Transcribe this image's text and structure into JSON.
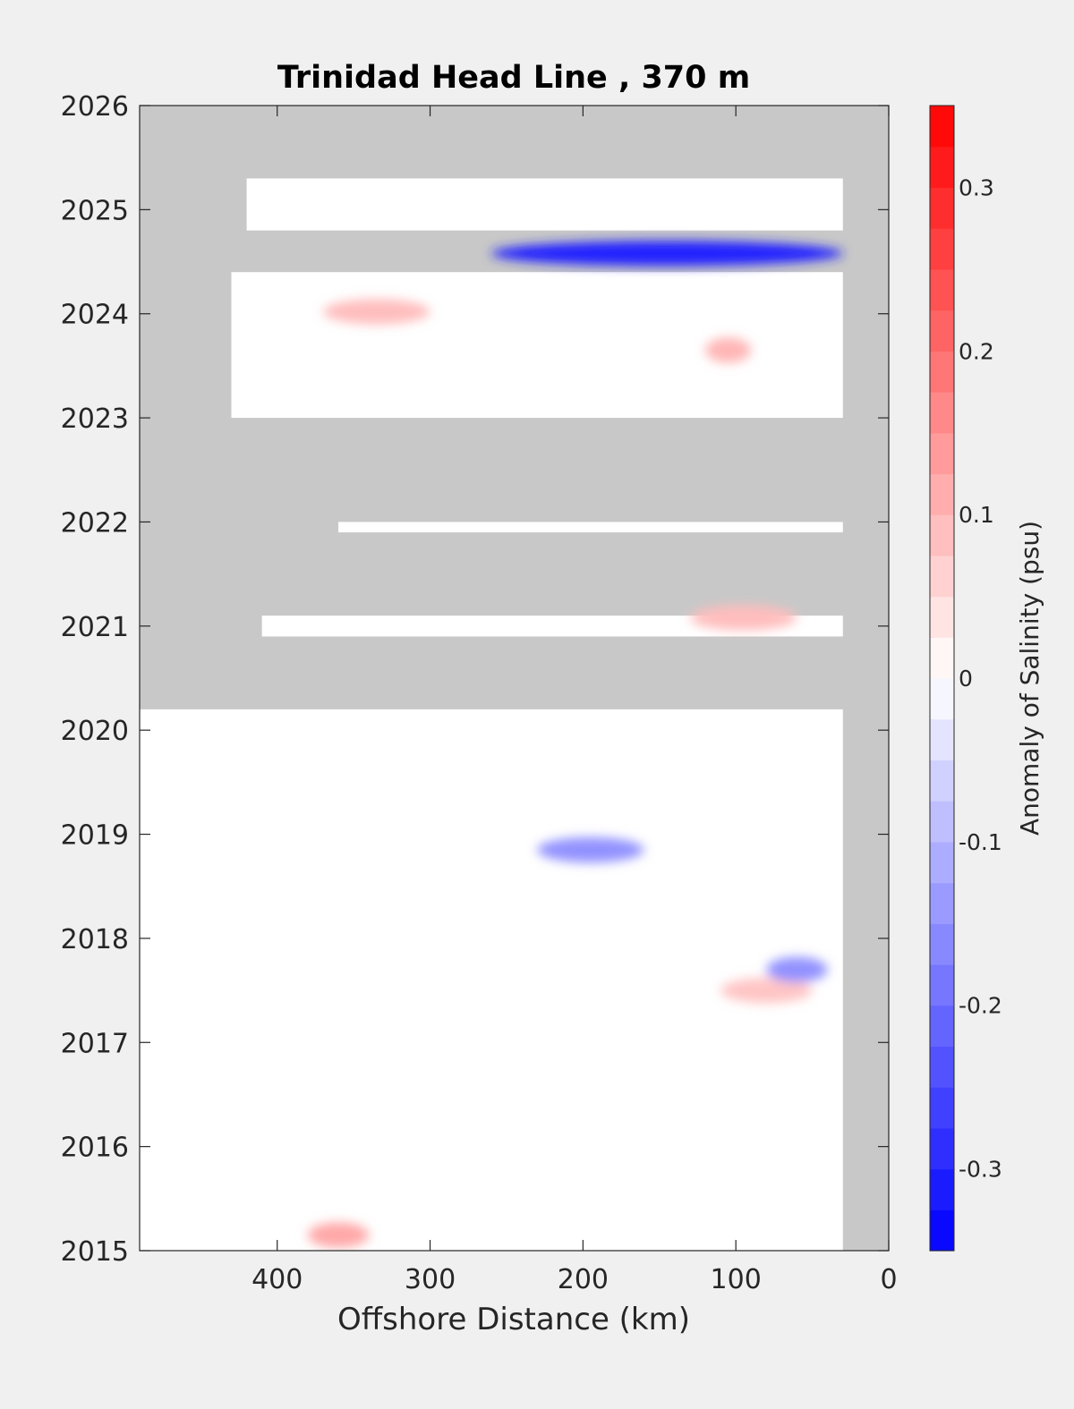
{
  "chart_data": {
    "type": "heatmap",
    "title": "Trinidad Head Line , 370 m",
    "xlabel": "Offshore Distance (km)",
    "ylabel": "",
    "xlim": [
      490,
      0
    ],
    "x_reversed": true,
    "ylim": [
      2015,
      2026
    ],
    "x_ticks": [
      400,
      300,
      200,
      100,
      0
    ],
    "y_ticks": [
      2015,
      2016,
      2017,
      2018,
      2019,
      2020,
      2021,
      2022,
      2023,
      2024,
      2025,
      2026
    ],
    "colorbar": {
      "label": "Anomaly of Salinity (psu)",
      "range": [
        -0.35,
        0.35
      ],
      "levels": 28,
      "ticks": [
        0.3,
        0.2,
        0.1,
        0,
        -0.1,
        -0.2,
        -0.3
      ],
      "tick_labels": [
        "0.3",
        "0.2",
        "0.1",
        "0",
        "-0.1",
        "-0.2",
        "-0.3"
      ]
    },
    "colors": {
      "no_data": "#c8c8c8",
      "positive": "#ff0000",
      "negative": "#0000ff",
      "zero": "#ffffff"
    },
    "data_columns": [
      {
        "year_start": 2015.0,
        "year_end": 2020.2,
        "x_near": 30,
        "x_far": 490
      },
      {
        "year_start": 2020.9,
        "year_end": 2021.1,
        "x_near": 30,
        "x_far": 410
      },
      {
        "year_start": 2021.9,
        "year_end": 2022.0,
        "x_near": 30,
        "x_far": 360
      },
      {
        "year_start": 2023.0,
        "year_end": 2024.4,
        "x_near": 30,
        "x_far": 430
      },
      {
        "year_start": 2024.8,
        "year_end": 2025.3,
        "x_near": 30,
        "x_far": 420
      }
    ],
    "anomaly_features": [
      {
        "label": "strong fresh anomaly",
        "year": 2024.58,
        "x_from": 30,
        "x_to": 260,
        "value": -0.3
      },
      {
        "label": "fresh anomaly",
        "year": 2018.85,
        "x_from": 160,
        "x_to": 230,
        "value": -0.15
      },
      {
        "label": "salty anomaly",
        "year": 2015.15,
        "x_from": 340,
        "x_to": 380,
        "value": 0.12
      },
      {
        "label": "salty anomaly",
        "year": 2021.08,
        "x_from": 60,
        "x_to": 130,
        "value": 0.09
      },
      {
        "label": "salty anomaly",
        "year": 2023.65,
        "x_from": 90,
        "x_to": 120,
        "value": 0.1
      },
      {
        "label": "salty anomaly",
        "year": 2024.02,
        "x_from": 300,
        "x_to": 370,
        "value": 0.09
      },
      {
        "label": "salty anomaly",
        "year": 2017.5,
        "x_from": 50,
        "x_to": 110,
        "value": 0.08
      },
      {
        "label": "fresh anomaly",
        "year": 2017.7,
        "x_from": 40,
        "x_to": 80,
        "value": -0.15
      }
    ]
  }
}
